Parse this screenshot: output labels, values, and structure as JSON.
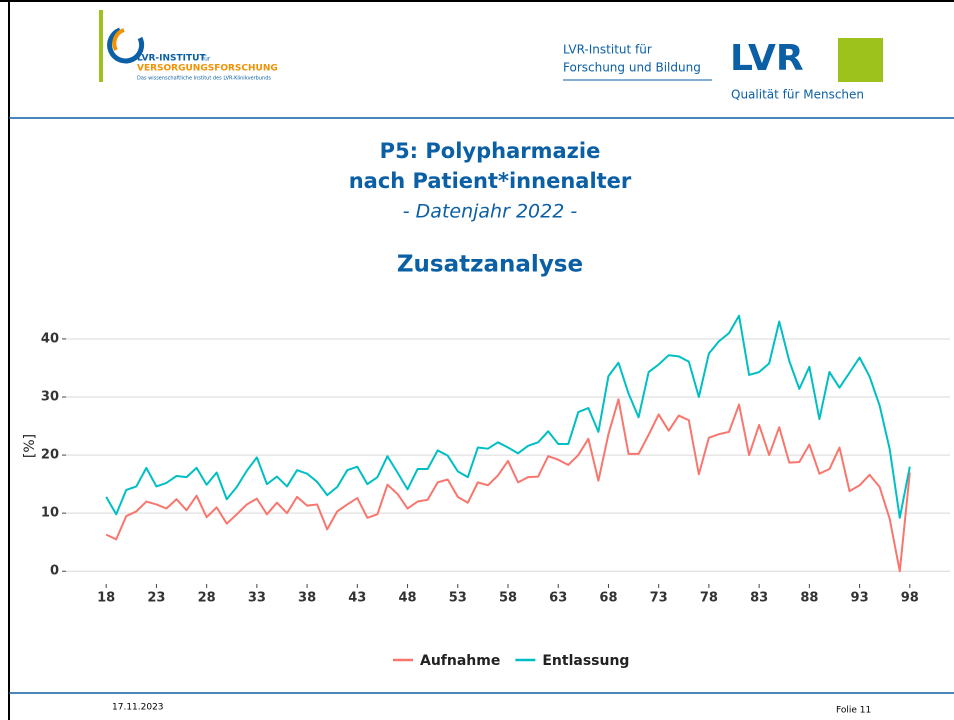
{
  "header": {
    "institute_line1": "LVR-INSTITUT",
    "institute_fuer": "für",
    "institute_line2": "VERSORGUNGSFORSCHUNG",
    "institute_sub": "Das wissenschaftliche Institut des LVR-Klinikverbunds",
    "lvr_line1": "LVR-Institut für",
    "lvr_line2": "Forschung und Bildung",
    "lvr_logo": "LVR",
    "lvr_slogan": "Qualität für Menschen"
  },
  "chart_data": {
    "type": "line",
    "title": "P5: Polypharmazie",
    "title2": "nach Patient*innenalter",
    "subtitle": "- Datenjahr 2022 -",
    "subtitle2": "Zusatzanalyse",
    "ylabel": "[%]",
    "x": [
      18,
      19,
      20,
      21,
      22,
      23,
      24,
      25,
      26,
      27,
      28,
      29,
      30,
      31,
      32,
      33,
      34,
      35,
      36,
      37,
      38,
      39,
      40,
      41,
      42,
      43,
      44,
      45,
      46,
      47,
      48,
      49,
      50,
      51,
      52,
      53,
      54,
      55,
      56,
      57,
      58,
      59,
      60,
      61,
      62,
      63,
      64,
      65,
      66,
      67,
      68,
      69,
      70,
      71,
      72,
      73,
      74,
      75,
      76,
      77,
      78,
      79,
      80,
      81,
      82,
      83,
      84,
      85,
      86,
      87,
      88,
      89,
      90,
      91,
      92,
      93,
      94,
      95,
      96,
      97,
      98
    ],
    "series": [
      {
        "name": "Aufnahme",
        "color": "#f8766d",
        "values": [
          6.3,
          5.5,
          9.5,
          10.3,
          12,
          11.5,
          10.8,
          12.4,
          10.5,
          13,
          9.3,
          11,
          8.2,
          9.8,
          11.5,
          12.5,
          9.8,
          11.8,
          10,
          12.8,
          11.3,
          11.5,
          7.2,
          10.3,
          11.5,
          12.6,
          9.2,
          9.8,
          14.9,
          13.3,
          10.8,
          12,
          12.3,
          15.3,
          15.8,
          12.8,
          11.8,
          15.3,
          14.8,
          16.5,
          19,
          15.3,
          16.2,
          16.3,
          19.8,
          19.2,
          18.3,
          20,
          22.8,
          15.6,
          23.6,
          29.6,
          20.2,
          20.2,
          23.5,
          27,
          24.2,
          26.8,
          26,
          16.7,
          23,
          23.6,
          24,
          28.7,
          20,
          25.2,
          20,
          24.8,
          18.7,
          18.8,
          21.8,
          16.8,
          17.6,
          21.3,
          13.8,
          14.8,
          16.6,
          14.5,
          9,
          0,
          17
        ]
      },
      {
        "name": "Entlassung",
        "color": "#00bfc4",
        "values": [
          12.8,
          9.8,
          14,
          14.6,
          17.8,
          14.6,
          15.2,
          16.4,
          16.2,
          17.8,
          14.9,
          17,
          12.4,
          14.5,
          17.3,
          19.6,
          15,
          16.3,
          14.6,
          17.4,
          16.8,
          15.4,
          13.1,
          14.5,
          17.4,
          18,
          15,
          16.2,
          19.8,
          17,
          14.1,
          17.6,
          17.6,
          20.8,
          19.9,
          17.2,
          16.2,
          21.3,
          21.1,
          22.2,
          21.3,
          20.3,
          21.6,
          22.2,
          24.1,
          21.9,
          21.9,
          27.4,
          28.1,
          24,
          33.6,
          35.9,
          30.6,
          26.5,
          34.3,
          35.6,
          37.2,
          37,
          36.1,
          30,
          37.5,
          39.6,
          41,
          44,
          33.8,
          34.3,
          35.8,
          43,
          36.2,
          31.4,
          35.2,
          26.2,
          34.3,
          31.6,
          34.2,
          36.8,
          33.5,
          28.5,
          21,
          9.2,
          18
        ]
      }
    ],
    "xlim": [
      14,
      102
    ],
    "xticks": [
      18,
      23,
      28,
      33,
      38,
      43,
      48,
      53,
      58,
      63,
      68,
      73,
      78,
      83,
      88,
      93,
      98
    ],
    "ylim": [
      -2.2,
      45.5
    ],
    "yticks": [
      0,
      10,
      20,
      30,
      40
    ],
    "grid": true,
    "legend": "bottom"
  },
  "footer": {
    "date": "17.11.2023",
    "slide": "Folie 11"
  }
}
